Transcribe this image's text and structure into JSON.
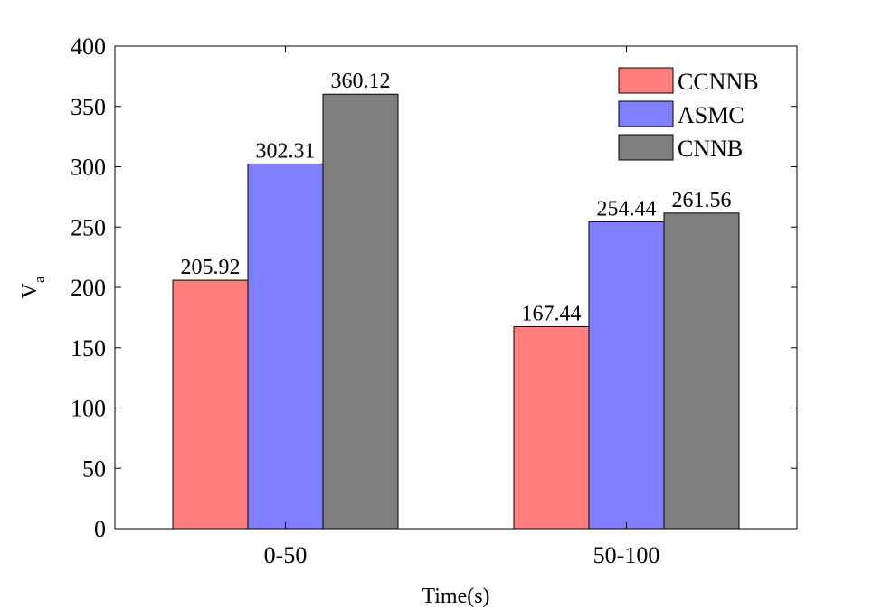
{
  "chart_data": {
    "type": "bar",
    "categories": [
      "0-50",
      "50-100"
    ],
    "series": [
      {
        "name": "CCNNB",
        "color": "#ff7f7f",
        "values": [
          205.92,
          167.44
        ]
      },
      {
        "name": "ASMC",
        "color": "#7f7fff",
        "values": [
          302.31,
          254.44
        ]
      },
      {
        "name": "CNNB",
        "color": "#7f7f7f",
        "values": [
          360.12,
          261.56
        ]
      }
    ],
    "value_labels": [
      [
        "205.92",
        "167.44"
      ],
      [
        "302.31",
        "254.44"
      ],
      [
        "360.12",
        "261.56"
      ]
    ],
    "xlabel": "Time(s)",
    "ylabel": {
      "main": "V",
      "subscript": "a"
    },
    "ylim": [
      0,
      400
    ],
    "yticks": [
      0,
      50,
      100,
      150,
      200,
      250,
      300,
      350,
      400
    ],
    "grid": false,
    "legend_position": "top-right"
  }
}
